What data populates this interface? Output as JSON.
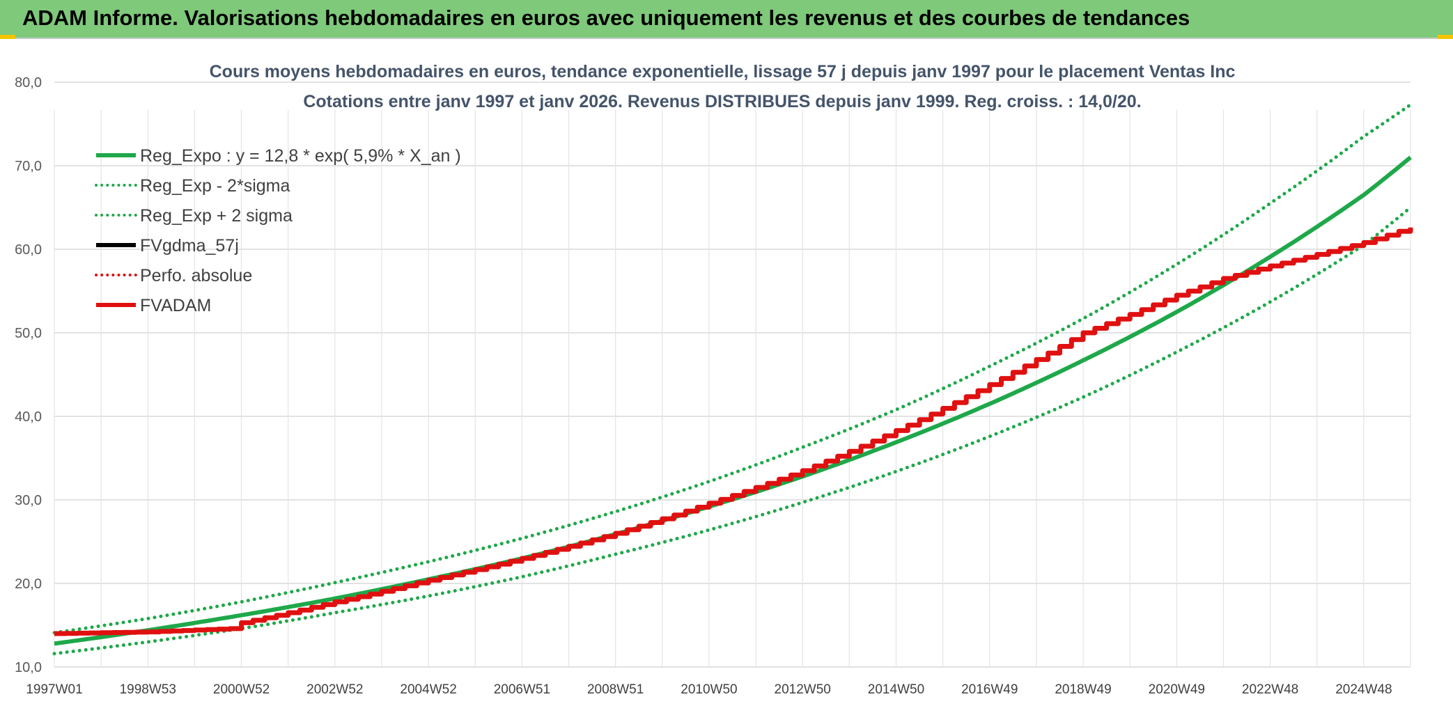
{
  "banner": {
    "title": "ADAM Informe. Valorisations hebdomadaires en euros avec uniquement les revenus et des courbes de tendances",
    "background": "#7ec97a",
    "corner_color": "#f2c500"
  },
  "chart_data": {
    "type": "line",
    "title": "Cours moyens hebdomadaires en euros, tendance exponentielle, lissage 57 j depuis janv 1997 pour le placement Ventas Inc",
    "subtitle": "Cotations entre janv 1997 et janv 2026. Revenus DISTRIBUES depuis janv 1999. Reg. croiss. : 14,0/20.",
    "xlabel": "",
    "ylabel": "",
    "ylim": [
      10,
      80
    ],
    "yticks": [
      "10,0",
      "20,0",
      "30,0",
      "40,0",
      "50,0",
      "60,0",
      "70,0",
      "80,0"
    ],
    "xlim": [
      1997.0,
      2026.0
    ],
    "xticks": [
      {
        "label": "1997W01",
        "year": 1997.0
      },
      {
        "label": "1998W53",
        "year": 1999.0
      },
      {
        "label": "2000W52",
        "year": 2001.0
      },
      {
        "label": "2002W52",
        "year": 2003.0
      },
      {
        "label": "2004W52",
        "year": 2005.0
      },
      {
        "label": "2006W51",
        "year": 2007.0
      },
      {
        "label": "2008W51",
        "year": 2009.0
      },
      {
        "label": "2010W50",
        "year": 2011.0
      },
      {
        "label": "2012W50",
        "year": 2013.0
      },
      {
        "label": "2014W50",
        "year": 2015.0
      },
      {
        "label": "2016W49",
        "year": 2017.0
      },
      {
        "label": "2018W49",
        "year": 2019.0
      },
      {
        "label": "2020W49",
        "year": 2021.0
      },
      {
        "label": "2022W48",
        "year": 2023.0
      },
      {
        "label": "2024W48",
        "year": 2025.0
      }
    ],
    "grid": true,
    "legend_position": "top-left",
    "series": [
      {
        "name": "Reg_Expo : y = 12,8 * exp( 5,9% *  X_an )",
        "color": "#1ea84a",
        "style": "solid",
        "x": [
          1997,
          1999,
          2001,
          2003,
          2005,
          2007,
          2009,
          2011,
          2013,
          2015,
          2017,
          2019,
          2021,
          2023,
          2025,
          2026
        ],
        "values": [
          12.8,
          14.4,
          16.2,
          18.2,
          20.5,
          23.0,
          25.9,
          29.2,
          32.8,
          36.9,
          41.5,
          46.7,
          52.5,
          59.1,
          66.5,
          71.0
        ]
      },
      {
        "name": "Reg_Exp - 2*sigma",
        "color": "#1ea84a",
        "style": "dotted",
        "x": [
          1997,
          1999,
          2001,
          2003,
          2005,
          2007,
          2009,
          2011,
          2013,
          2015,
          2017,
          2019,
          2021,
          2023,
          2025,
          2026
        ],
        "values": [
          11.6,
          13.0,
          14.6,
          16.5,
          18.5,
          20.8,
          23.5,
          26.4,
          29.7,
          33.4,
          37.6,
          42.3,
          47.7,
          53.7,
          60.5,
          65.0
        ]
      },
      {
        "name": "Reg_Exp + 2 sigma",
        "color": "#1ea84a",
        "style": "dotted",
        "x": [
          1997,
          1999,
          2001,
          2003,
          2005,
          2007,
          2009,
          2011,
          2013,
          2015,
          2017,
          2019,
          2021,
          2023,
          2025,
          2026
        ],
        "values": [
          14.1,
          15.8,
          17.8,
          20.1,
          22.6,
          25.4,
          28.6,
          32.2,
          36.3,
          40.8,
          46.0,
          51.7,
          58.2,
          65.5,
          73.5,
          77.3
        ]
      },
      {
        "name": "FVgdma_57j",
        "color": "#000000",
        "style": "solid",
        "x": [],
        "values": []
      },
      {
        "name": "Perfo. absolue",
        "color": "#e01010",
        "style": "dotted",
        "x": [],
        "values": []
      },
      {
        "name": "FVADAM",
        "color": "#e01010",
        "style": "solid",
        "x": [
          1997,
          1999,
          2000.8,
          2001,
          2003,
          2005,
          2007,
          2009,
          2011,
          2013,
          2015,
          2017,
          2019,
          2021,
          2022,
          2023,
          2025,
          2026
        ],
        "values": [
          14.0,
          14.2,
          14.6,
          15.3,
          17.8,
          20.4,
          23.0,
          26.0,
          29.6,
          33.5,
          38.3,
          43.8,
          50.0,
          54.5,
          56.5,
          58.0,
          60.8,
          62.6
        ]
      }
    ]
  }
}
